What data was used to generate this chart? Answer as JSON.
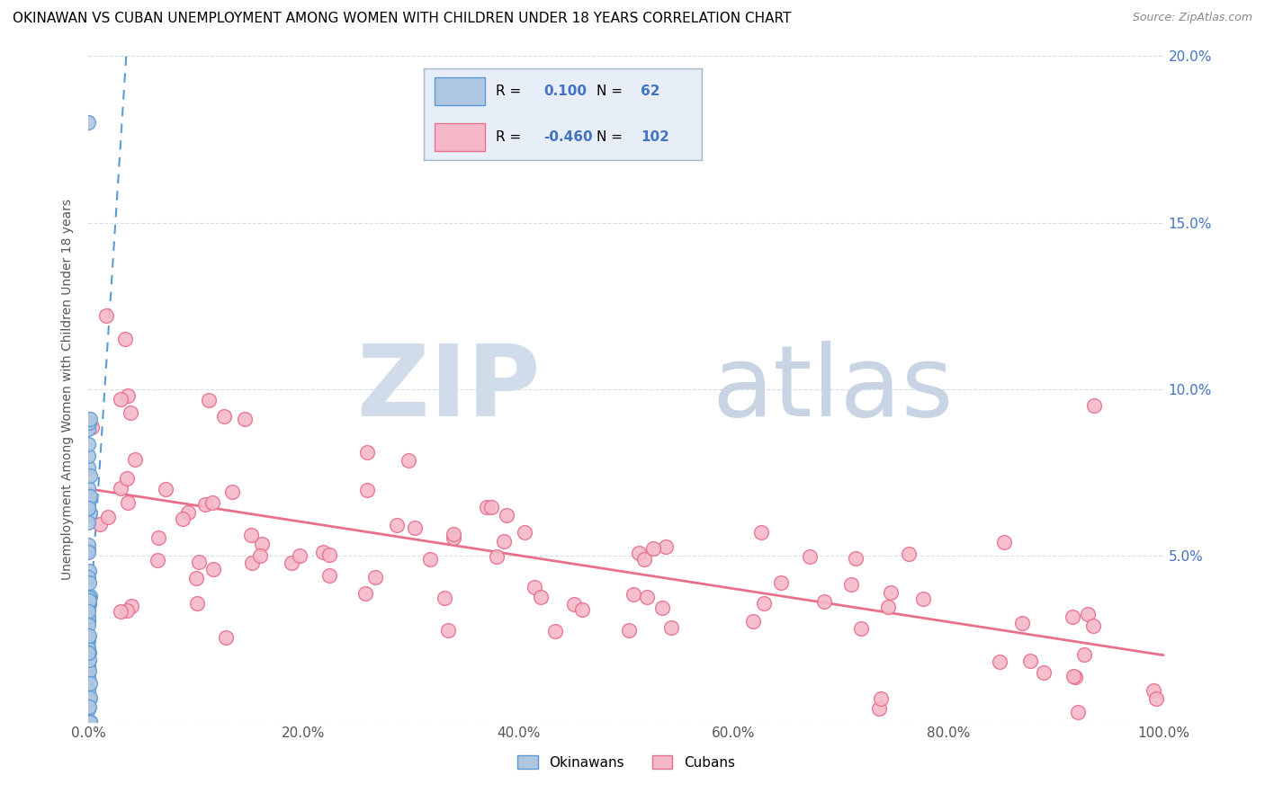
{
  "title": "OKINAWAN VS CUBAN UNEMPLOYMENT AMONG WOMEN WITH CHILDREN UNDER 18 YEARS CORRELATION CHART",
  "source": "Source: ZipAtlas.com",
  "ylabel": "Unemployment Among Women with Children Under 18 years",
  "xlim": [
    0,
    100
  ],
  "ylim": [
    0,
    20
  ],
  "xtick_vals": [
    0,
    20,
    40,
    60,
    80,
    100
  ],
  "xtick_labels": [
    "0.0%",
    "20.0%",
    "40.0%",
    "60.0%",
    "80.0%",
    "100.0%"
  ],
  "ytick_vals": [
    0,
    5,
    10,
    15,
    20
  ],
  "right_ytick_labels": [
    "",
    "5.0%",
    "10.0%",
    "15.0%",
    "20.0%"
  ],
  "okinawan_color": "#aec6e0",
  "okinawan_edge": "#5b9bd5",
  "cuban_color": "#f4b8c8",
  "cuban_edge": "#e8708a",
  "trend_okinawan_color": "#5b9bd5",
  "trend_cuban_color": "#e8708a",
  "watermark_zip_color": "#d0dcea",
  "watermark_atlas_color": "#c8d4e4",
  "legend_R_color": "#4472c4",
  "legend_N_color": "#4472c4",
  "okinawan_R": "0.100",
  "okinawan_N": "62",
  "cuban_R": "-0.460",
  "cuban_N": "102",
  "legend_box_color": "#e8eef8",
  "legend_border_color": "#aabbcc",
  "grid_color": "#d8dce8",
  "title_fontsize": 11,
  "axis_label_fontsize": 10,
  "tick_fontsize": 11,
  "right_tick_color": "#4472c4"
}
